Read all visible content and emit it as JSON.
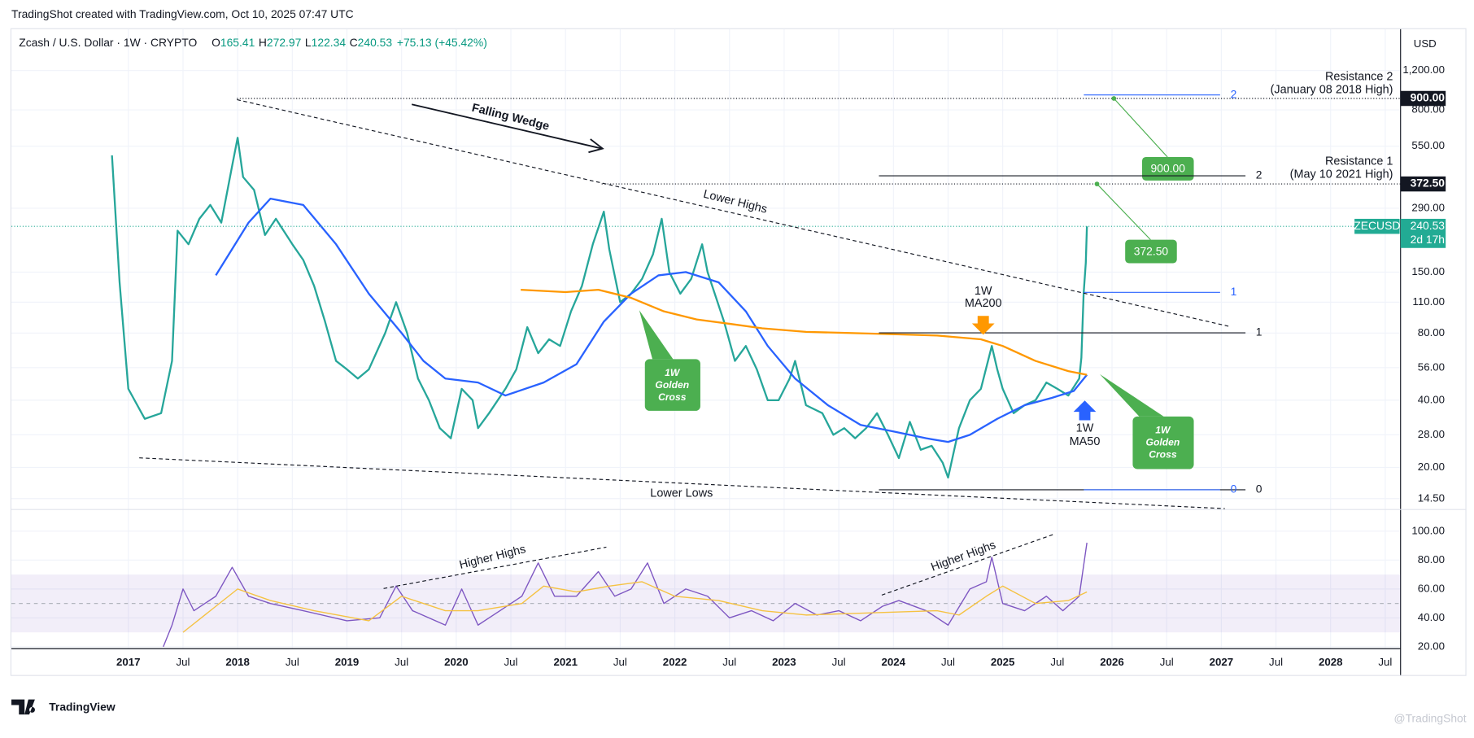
{
  "header": {
    "credit": "TradingShot created with TradingView.com, Oct 10, 2025 07:47 UTC"
  },
  "footer": {
    "brand": "TradingView",
    "watermark": "@TradingShot"
  },
  "chart_data": [
    {
      "type": "line",
      "title": "Zcash / U.S. Dollar · 1W · CRYPTO",
      "ohlc": [
        {
          "label": "O",
          "value": "165.41"
        },
        {
          "label": "H",
          "value": "272.97"
        },
        {
          "label": "L",
          "value": "122.34"
        },
        {
          "label": "C",
          "value": "240.53"
        }
      ],
      "change": "+75.13 (+45.42%)",
      "currency": "USD",
      "log_scale": true,
      "grid": true,
      "xlim": [
        2015.93,
        2028.64
      ],
      "xticks": [
        2017,
        {
          "value": 2017.5,
          "label": "Jul"
        },
        2018,
        {
          "value": 2018.5,
          "label": "Jul"
        },
        2019,
        {
          "value": 2019.5,
          "label": "Jul"
        },
        2020,
        {
          "value": 2020.5,
          "label": "Jul"
        },
        2021,
        {
          "value": 2021.5,
          "label": "Jul"
        },
        2022,
        {
          "value": 2022.5,
          "label": "Jul"
        },
        2023,
        {
          "value": 2023.5,
          "label": "Jul"
        },
        2024,
        {
          "value": 2024.5,
          "label": "Jul"
        },
        2025,
        {
          "value": 2025.5,
          "label": "Jul"
        },
        2026,
        {
          "value": 2026.5,
          "label": "Jul"
        },
        2027,
        {
          "value": 2027.5,
          "label": "Jul"
        },
        2028,
        {
          "value": 2028.5,
          "label": "Jul"
        }
      ],
      "ylim": [
        13.2,
        1770
      ],
      "yticks": [
        {
          "value": 1200,
          "label": "1,200.00"
        },
        {
          "value": 800,
          "label": "800.00"
        },
        {
          "value": 550,
          "label": "550.00"
        },
        {
          "value": 290,
          "label": "290.00"
        },
        {
          "value": 150,
          "label": "150.00"
        },
        {
          "value": 110,
          "label": "110.00"
        },
        {
          "value": 80,
          "label": "80.00"
        },
        {
          "value": 56,
          "label": "56.00"
        },
        {
          "value": 40,
          "label": "40.00"
        },
        {
          "value": 28,
          "label": "28.00"
        },
        {
          "value": 20,
          "label": "20.00"
        },
        {
          "value": 14.5,
          "label": "14.50"
        }
      ],
      "price_lines": [
        {
          "value": 900,
          "label": "900.00"
        },
        {
          "value": 372.5,
          "label": "372.50"
        }
      ],
      "last_price": {
        "symbol": "ZECUSD",
        "value": 240.53,
        "label": "240.53",
        "countdown": "2d 17h",
        "color": "#22ab94"
      },
      "series": [
        {
          "color": "#26a69a",
          "x": [
            2016.85,
            2016.92,
            2017.0,
            2017.15,
            2017.3,
            2017.4,
            2017.45,
            2017.55,
            2017.65,
            2017.75,
            2017.85,
            2017.95,
            2018.0,
            2018.05,
            2018.15,
            2018.25,
            2018.35,
            2018.5,
            2018.6,
            2018.7,
            2018.8,
            2018.9,
            2019.0,
            2019.1,
            2019.2,
            2019.35,
            2019.45,
            2019.55,
            2019.65,
            2019.75,
            2019.85,
            2019.95,
            2020.05,
            2020.15,
            2020.2,
            2020.3,
            2020.45,
            2020.55,
            2020.65,
            2020.75,
            2020.85,
            2020.95,
            2021.05,
            2021.15,
            2021.25,
            2021.35,
            2021.4,
            2021.5,
            2021.6,
            2021.7,
            2021.8,
            2021.88,
            2021.95,
            2022.05,
            2022.15,
            2022.25,
            2022.3,
            2022.45,
            2022.55,
            2022.65,
            2022.75,
            2022.85,
            2022.95,
            2023.05,
            2023.1,
            2023.2,
            2023.35,
            2023.45,
            2023.55,
            2023.65,
            2023.75,
            2023.85,
            2023.95,
            2024.05,
            2024.15,
            2024.25,
            2024.35,
            2024.45,
            2024.5,
            2024.6,
            2024.7,
            2024.8,
            2024.9,
            2024.95,
            2025.0,
            2025.1,
            2025.2,
            2025.3,
            2025.4,
            2025.5,
            2025.6,
            2025.7,
            2025.72,
            2025.74,
            2025.76,
            2025.77
          ],
          "values": [
            500,
            135,
            45,
            33,
            35,
            60,
            230,
            200,
            260,
            300,
            250,
            450,
            600,
            400,
            350,
            220,
            260,
            200,
            170,
            130,
            90,
            60,
            55,
            50,
            55,
            80,
            110,
            80,
            50,
            40,
            30,
            27,
            45,
            40,
            30,
            35,
            45,
            55,
            85,
            65,
            75,
            70,
            100,
            130,
            200,
            280,
            190,
            110,
            120,
            140,
            180,
            260,
            150,
            120,
            140,
            200,
            150,
            90,
            60,
            70,
            55,
            40,
            40,
            50,
            60,
            38,
            35,
            28,
            30,
            27,
            30,
            35,
            28,
            22,
            32,
            24,
            25,
            21,
            18,
            30,
            40,
            45,
            70,
            55,
            45,
            35,
            38,
            40,
            48,
            45,
            42,
            50,
            62,
            120,
            165,
            240.53
          ]
        },
        {
          "color": "#2962ff",
          "x": [
            2017.8,
            2018.1,
            2018.3,
            2018.6,
            2018.9,
            2019.2,
            2019.5,
            2019.7,
            2019.9,
            2020.2,
            2020.45,
            2020.8,
            2021.1,
            2021.35,
            2021.6,
            2021.85,
            2022.1,
            2022.4,
            2022.65,
            2022.85,
            2023.1,
            2023.4,
            2023.7,
            2024.0,
            2024.3,
            2024.5,
            2024.7,
            2024.95,
            2025.2,
            2025.45,
            2025.65,
            2025.77
          ],
          "values": [
            145,
            250,
            320,
            300,
            200,
            120,
            80,
            60,
            50,
            48,
            42,
            48,
            58,
            90,
            120,
            145,
            150,
            135,
            100,
            70,
            50,
            38,
            31,
            29,
            27,
            26,
            28,
            33,
            38,
            41,
            44,
            52
          ]
        },
        {
          "color": "#ff9800",
          "x": [
            2020.59,
            2021.0,
            2021.3,
            2021.6,
            2021.9,
            2022.2,
            2022.5,
            2022.8,
            2023.2,
            2023.6,
            2024.0,
            2024.4,
            2024.8,
            2025.0,
            2025.3,
            2025.6,
            2025.77
          ],
          "values": [
            125,
            122,
            125,
            115,
            100,
            92,
            88,
            84,
            81,
            80,
            79,
            78,
            75,
            70,
            60,
            54,
            52
          ]
        }
      ],
      "annotations": {
        "falling_wedge": "Falling Wedge",
        "lower_highs": "Lower Highs",
        "lower_lows": "Lower Lows",
        "ma200": [
          "1W",
          "MA200"
        ],
        "ma50": [
          "1W",
          "MA50"
        ],
        "golden_cross": [
          "1W",
          "Golden",
          "Cross"
        ],
        "resistance_2": [
          "Resistance 2",
          "(January 08 2018 High)"
        ],
        "resistance_1": [
          "Resistance 1",
          "(May 10 2021 High)"
        ],
        "targets": [
          {
            "value": 900,
            "label": "900.00"
          },
          {
            "value": 372.5,
            "label": "372.50"
          }
        ],
        "levels": [
          2,
          1,
          0
        ]
      }
    },
    {
      "type": "line",
      "ylim": [
        18.7,
        113
      ],
      "yticks": [
        {
          "value": 100,
          "label": "100.00"
        },
        {
          "value": 80,
          "label": "80.00"
        },
        {
          "value": 60,
          "label": "60.00"
        },
        {
          "value": 40,
          "label": "40.00"
        },
        {
          "value": 20,
          "label": "20.00"
        }
      ],
      "band": [
        30,
        70
      ],
      "midline": 50,
      "series": [
        {
          "color": "#7e57c2",
          "x": [
            2017.32,
            2017.4,
            2017.5,
            2017.6,
            2017.8,
            2017.95,
            2018.1,
            2018.3,
            2018.6,
            2019.0,
            2019.3,
            2019.45,
            2019.6,
            2019.9,
            2020.05,
            2020.2,
            2020.4,
            2020.6,
            2020.75,
            2020.9,
            2021.1,
            2021.3,
            2021.45,
            2021.6,
            2021.75,
            2021.9,
            2022.1,
            2022.3,
            2022.5,
            2022.7,
            2022.9,
            2023.1,
            2023.3,
            2023.5,
            2023.7,
            2023.9,
            2024.05,
            2024.3,
            2024.5,
            2024.7,
            2024.85,
            2024.9,
            2025.0,
            2025.2,
            2025.4,
            2025.55,
            2025.7,
            2025.77
          ],
          "values": [
            20,
            35,
            60,
            45,
            55,
            75,
            55,
            50,
            45,
            38,
            40,
            62,
            45,
            35,
            60,
            35,
            45,
            55,
            78,
            55,
            55,
            72,
            55,
            60,
            78,
            50,
            60,
            55,
            40,
            45,
            38,
            50,
            42,
            45,
            38,
            48,
            52,
            45,
            35,
            60,
            65,
            82,
            50,
            45,
            55,
            45,
            55,
            92
          ]
        },
        {
          "color": "#f5c242",
          "x": [
            2017.5,
            2017.8,
            2018.0,
            2018.3,
            2018.7,
            2019.2,
            2019.5,
            2019.9,
            2020.2,
            2020.6,
            2020.8,
            2021.1,
            2021.4,
            2021.7,
            2022.0,
            2022.4,
            2022.8,
            2023.2,
            2023.6,
            2024.0,
            2024.4,
            2024.6,
            2024.85,
            2025.0,
            2025.3,
            2025.6,
            2025.77
          ],
          "values": [
            30,
            48,
            60,
            52,
            45,
            38,
            55,
            45,
            45,
            50,
            62,
            58,
            62,
            65,
            55,
            52,
            45,
            42,
            43,
            44,
            45,
            42,
            55,
            62,
            50,
            52,
            58
          ]
        }
      ],
      "annotations": {
        "higher_highs": "Higher Highs"
      }
    }
  ]
}
